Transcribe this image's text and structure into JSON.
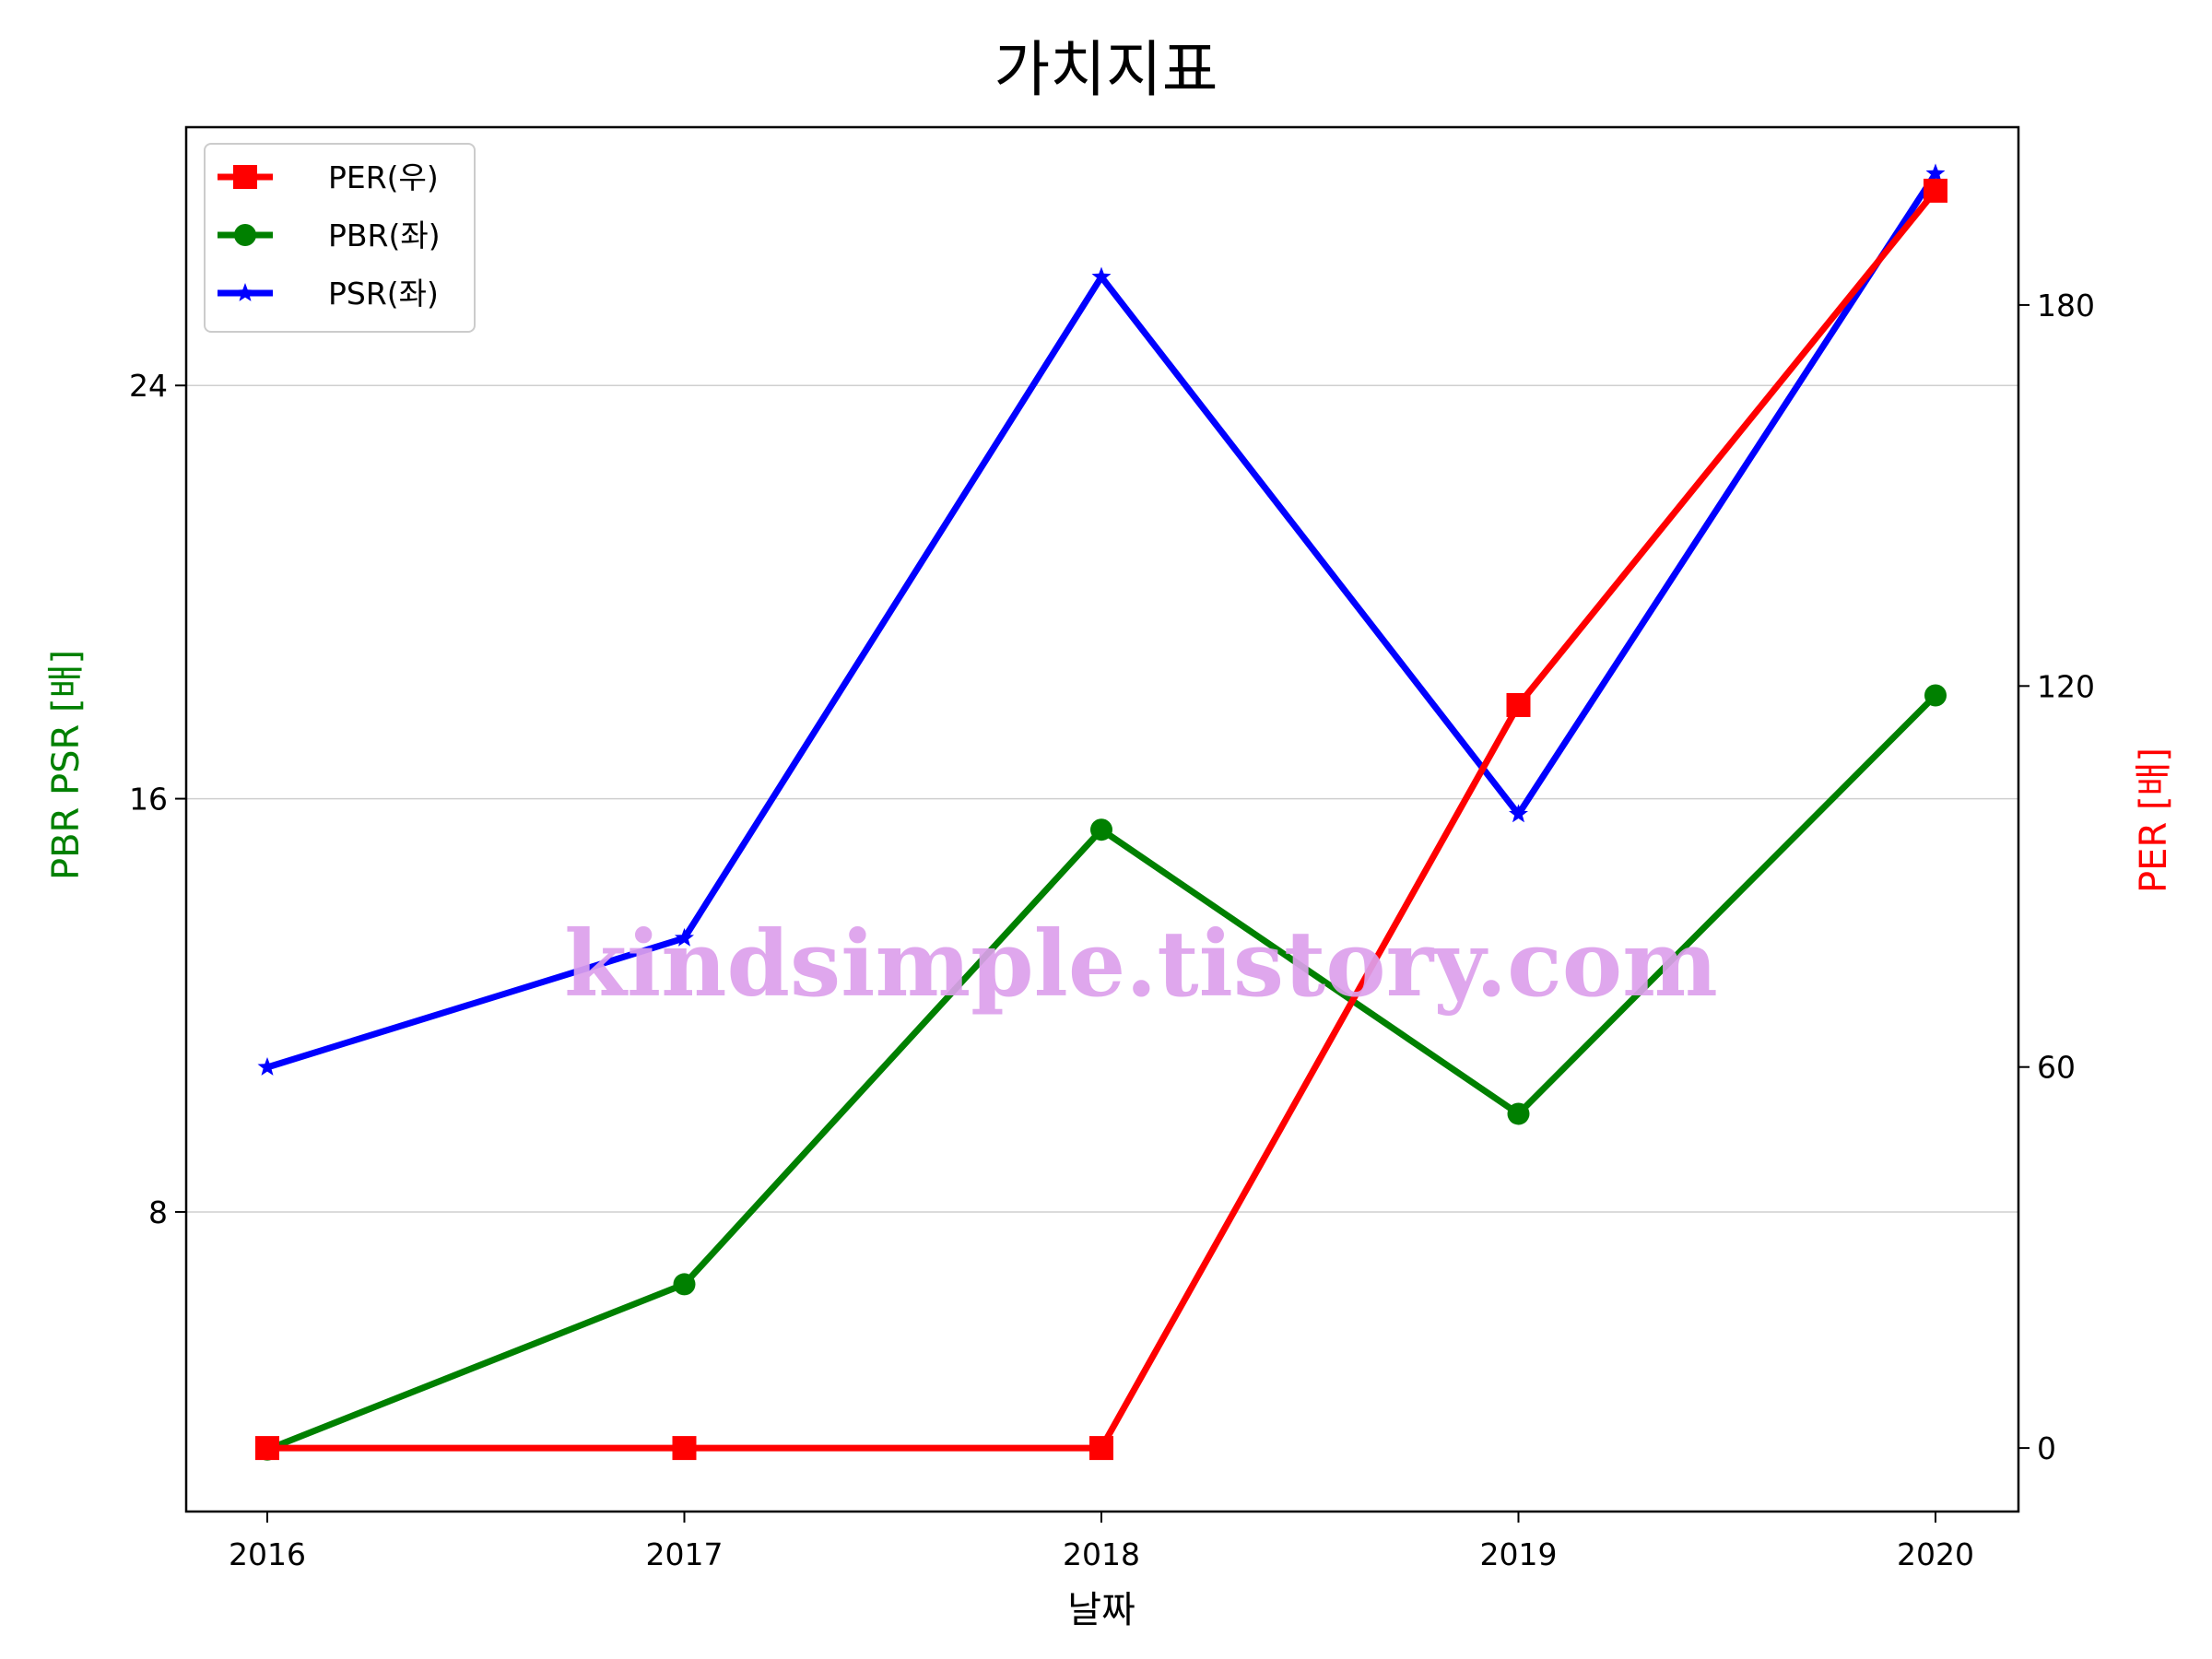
{
  "chart_data": {
    "type": "line",
    "title": "가치지표",
    "xlabel": "날짜",
    "ylabel_left": "PBR PSR [배]",
    "ylabel_right": "PER [배]",
    "categories": [
      "2016",
      "2017",
      "2018",
      "2019",
      "2020"
    ],
    "left_axis": {
      "ticks": [
        "8",
        "16",
        "24"
      ],
      "ylim": [
        2.2,
        29.0
      ],
      "grid": true
    },
    "right_axis": {
      "ticks": [
        "0",
        "60",
        "120",
        "180"
      ],
      "ylim": [
        -10,
        208
      ]
    },
    "series": [
      {
        "name": "PER(우)",
        "axis": "right",
        "color": "#ff0000",
        "marker": "square",
        "values": [
          0,
          0,
          0,
          117,
          198
        ]
      },
      {
        "name": "PBR(좌)",
        "axis": "left",
        "color": "#008000",
        "marker": "circle",
        "values": [
          3.4,
          6.6,
          15.4,
          9.9,
          18.0
        ]
      },
      {
        "name": "PSR(좌)",
        "axis": "left",
        "color": "#0000ff",
        "marker": "star",
        "values": [
          10.8,
          13.3,
          26.1,
          15.7,
          28.1
        ]
      }
    ],
    "legend_position": "top-left"
  },
  "watermark": "kindsimple.tistory.com"
}
